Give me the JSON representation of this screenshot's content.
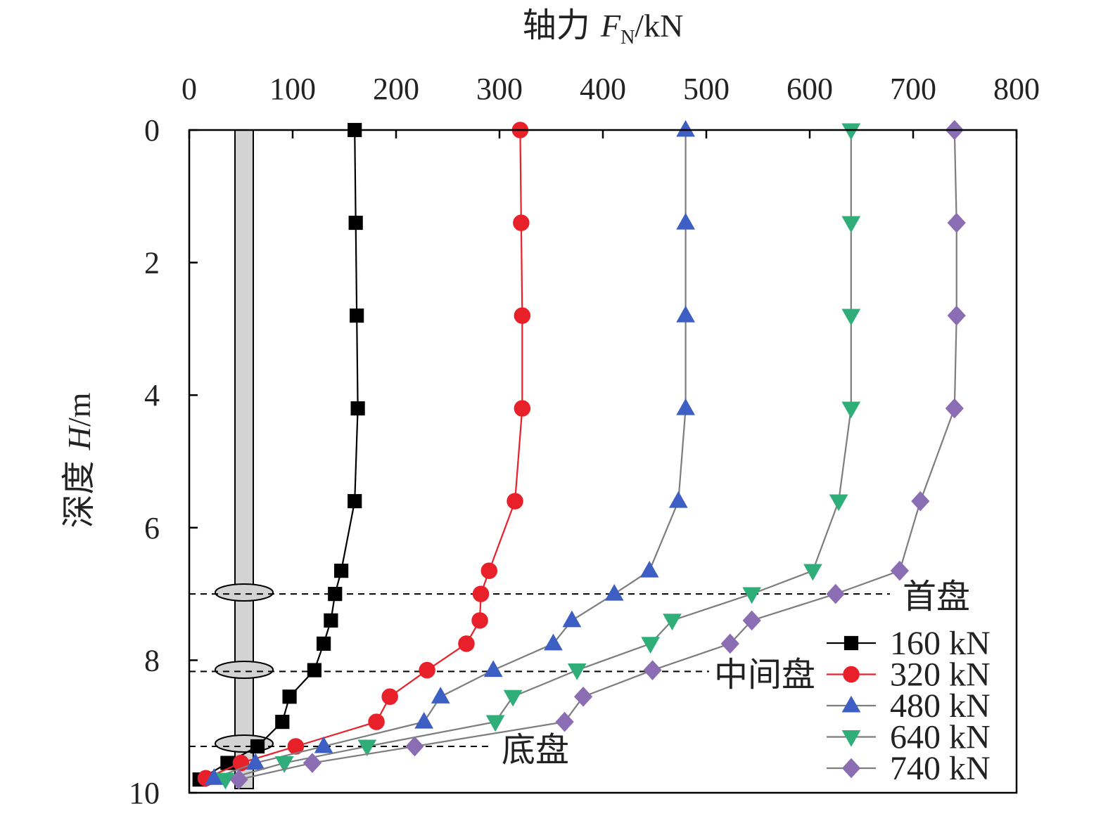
{
  "chart_data": {
    "type": "line",
    "x_title": {
      "prefix": "轴力 ",
      "var": "F",
      "sub": "N",
      "unit": "/kN"
    },
    "y_title": {
      "prefix": "深度 ",
      "var": "H",
      "unit": "/m"
    },
    "xlim": [
      0,
      800
    ],
    "ylim": [
      0,
      10
    ],
    "x_axis_position": "top",
    "y_inverted": true,
    "x_ticks": [
      "0",
      "100",
      "200",
      "300",
      "400",
      "500",
      "600",
      "700",
      "800"
    ],
    "y_ticks": [
      "0",
      "2",
      "4",
      "6",
      "8",
      "10"
    ],
    "grid": false,
    "legend_position": "bottom-right",
    "annotations": [
      {
        "label": "首盘",
        "depth": 7.0
      },
      {
        "label": "中间盘",
        "depth": 8.17
      },
      {
        "label": "底盘",
        "depth": 9.3
      }
    ],
    "series": [
      {
        "name": "160 kN",
        "color": "#000000",
        "marker": "square",
        "x": [
          160,
          161,
          162,
          163,
          160,
          147,
          141,
          137,
          130,
          121,
          97,
          90,
          66,
          37,
          10
        ],
        "y": [
          0,
          1.4,
          2.8,
          4.2,
          5.6,
          6.65,
          7.0,
          7.4,
          7.75,
          8.15,
          8.55,
          8.93,
          9.3,
          9.55,
          9.8
        ]
      },
      {
        "name": "320 kN",
        "color": "#e8202a",
        "marker": "circle",
        "x": [
          320,
          321,
          322,
          322,
          315,
          290,
          282,
          281,
          268,
          230,
          194,
          181,
          103,
          50,
          16
        ],
        "y": [
          0,
          1.4,
          2.8,
          4.2,
          5.6,
          6.65,
          7.0,
          7.4,
          7.75,
          8.15,
          8.55,
          8.93,
          9.3,
          9.55,
          9.78
        ]
      },
      {
        "name": "480 kN",
        "color": "#3d5fc4",
        "marker": "triangle-up",
        "x": [
          480,
          480,
          480,
          480,
          473,
          445,
          411,
          370,
          352,
          294,
          243,
          227,
          130,
          64,
          24
        ],
        "y": [
          0,
          1.4,
          2.8,
          4.2,
          5.6,
          6.65,
          7.0,
          7.4,
          7.75,
          8.15,
          8.55,
          8.93,
          9.3,
          9.55,
          9.78
        ]
      },
      {
        "name": "640 kN",
        "color": "#2fae7a",
        "marker": "triangle-down",
        "x": [
          640,
          640,
          640,
          640,
          628,
          603,
          544,
          467,
          446,
          375,
          313,
          296,
          172,
          92,
          35
        ],
        "y": [
          0,
          1.4,
          2.8,
          4.2,
          5.6,
          6.65,
          7.0,
          7.4,
          7.75,
          8.15,
          8.55,
          8.93,
          9.3,
          9.55,
          9.8
        ]
      },
      {
        "name": "740 kN",
        "color": "#8b6db4",
        "marker": "diamond",
        "x": [
          740,
          742,
          742,
          740,
          707,
          687,
          625,
          544,
          523,
          448,
          381,
          363,
          218,
          119,
          48
        ],
        "y": [
          0,
          1.4,
          2.8,
          4.2,
          5.6,
          6.65,
          7.0,
          7.4,
          7.75,
          8.15,
          8.55,
          8.93,
          9.3,
          9.55,
          9.8
        ]
      }
    ]
  }
}
